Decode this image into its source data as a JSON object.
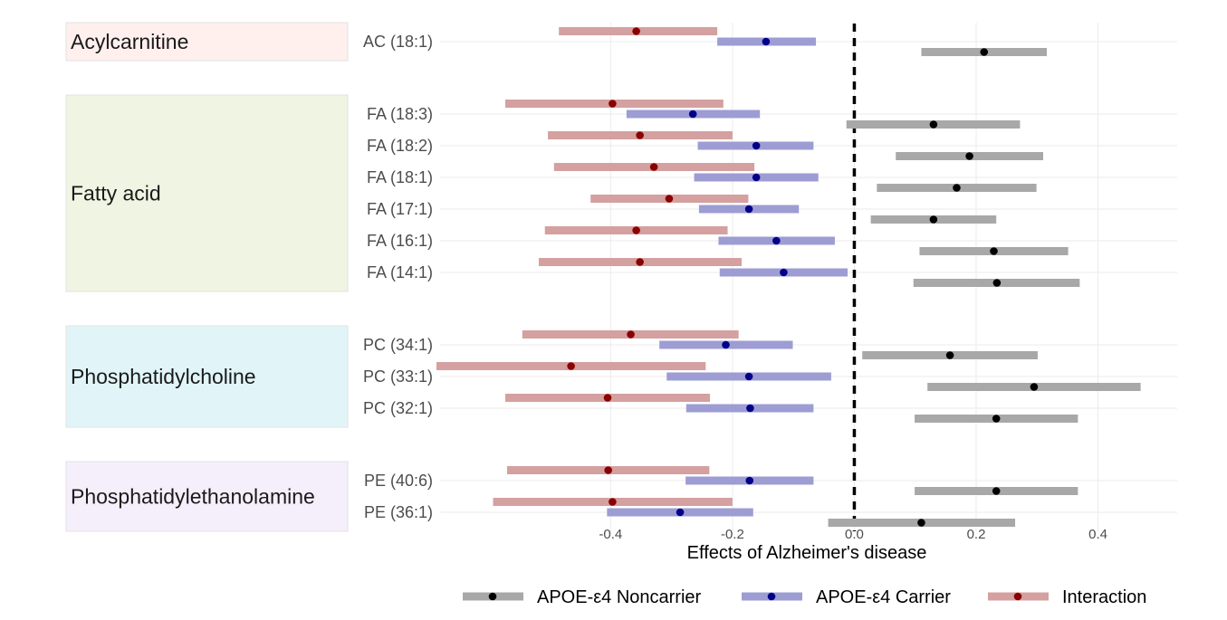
{
  "chart_data": {
    "type": "forest",
    "xlabel": "Effects of Alzheimer's disease",
    "xlim": [
      -0.68,
      0.53
    ],
    "xticks": [
      -0.4,
      -0.2,
      0.0,
      0.2,
      0.4
    ],
    "xtick_labels": [
      "-0.4",
      "-0.2",
      "0.0",
      "0.2",
      "0.4"
    ],
    "reference_line": 0.0,
    "series": [
      {
        "key": "noncarrier",
        "name": "APOE-ε4 Noncarrier",
        "color": "#000000",
        "bar_color": "#a8a8a8"
      },
      {
        "key": "carrier",
        "name": "APOE-ε4 Carrier",
        "color": "#00008b",
        "bar_color": "#9d9dd4"
      },
      {
        "key": "interaction",
        "name": "Interaction",
        "color": "#8b0000",
        "bar_color": "#d4a0a0"
      }
    ],
    "groups": [
      {
        "name": "Acylcarnitine",
        "color": "#fff0ee",
        "rows": [
          {
            "label": "AC (18:1)",
            "interaction": {
              "est": -0.358,
              "lo": -0.485,
              "hi": -0.225
            },
            "carrier": {
              "est": -0.145,
              "lo": -0.225,
              "hi": -0.063
            },
            "noncarrier": {
              "est": 0.213,
              "lo": 0.11,
              "hi": 0.316
            }
          }
        ]
      },
      {
        "name": "Fatty acid",
        "color": "#f0f5e3",
        "rows": [
          {
            "label": "FA (18:3)",
            "interaction": {
              "est": -0.397,
              "lo": -0.573,
              "hi": -0.215
            },
            "carrier": {
              "est": -0.265,
              "lo": -0.374,
              "hi": -0.155
            },
            "noncarrier": {
              "est": 0.13,
              "lo": -0.013,
              "hi": 0.272
            }
          },
          {
            "label": "FA (18:2)",
            "interaction": {
              "est": -0.352,
              "lo": -0.503,
              "hi": -0.2
            },
            "carrier": {
              "est": -0.161,
              "lo": -0.257,
              "hi": -0.067
            },
            "noncarrier": {
              "est": 0.189,
              "lo": 0.068,
              "hi": 0.31
            }
          },
          {
            "label": "FA (18:1)",
            "interaction": {
              "est": -0.329,
              "lo": -0.493,
              "hi": -0.164
            },
            "carrier": {
              "est": -0.161,
              "lo": -0.263,
              "hi": -0.059
            },
            "noncarrier": {
              "est": 0.168,
              "lo": 0.037,
              "hi": 0.299
            }
          },
          {
            "label": "FA (17:1)",
            "interaction": {
              "est": -0.304,
              "lo": -0.433,
              "hi": -0.174
            },
            "carrier": {
              "est": -0.173,
              "lo": -0.255,
              "hi": -0.091
            },
            "noncarrier": {
              "est": 0.13,
              "lo": 0.027,
              "hi": 0.233
            }
          },
          {
            "label": "FA (16:1)",
            "interaction": {
              "est": -0.358,
              "lo": -0.508,
              "hi": -0.208
            },
            "carrier": {
              "est": -0.128,
              "lo": -0.223,
              "hi": -0.032
            },
            "noncarrier": {
              "est": 0.229,
              "lo": 0.107,
              "hi": 0.351
            }
          },
          {
            "label": "FA (14:1)",
            "interaction": {
              "est": -0.352,
              "lo": -0.518,
              "hi": -0.185
            },
            "carrier": {
              "est": -0.116,
              "lo": -0.221,
              "hi": -0.011
            },
            "noncarrier": {
              "est": 0.234,
              "lo": 0.097,
              "hi": 0.37
            }
          }
        ]
      },
      {
        "name": "Phosphatidylcholine",
        "color": "#e1f5f8",
        "rows": [
          {
            "label": "PC (34:1)",
            "interaction": {
              "est": -0.367,
              "lo": -0.545,
              "hi": -0.19
            },
            "carrier": {
              "est": -0.211,
              "lo": -0.32,
              "hi": -0.101
            },
            "noncarrier": {
              "est": 0.157,
              "lo": 0.013,
              "hi": 0.301
            }
          },
          {
            "label": "PC (33:1)",
            "interaction": {
              "est": -0.465,
              "lo": -0.686,
              "hi": -0.244
            },
            "carrier": {
              "est": -0.173,
              "lo": -0.308,
              "hi": -0.038
            },
            "noncarrier": {
              "est": 0.295,
              "lo": 0.12,
              "hi": 0.47
            }
          },
          {
            "label": "PC (32:1)",
            "interaction": {
              "est": -0.405,
              "lo": -0.573,
              "hi": -0.237
            },
            "carrier": {
              "est": -0.171,
              "lo": -0.276,
              "hi": -0.067
            },
            "noncarrier": {
              "est": 0.233,
              "lo": 0.099,
              "hi": 0.367
            }
          }
        ]
      },
      {
        "name": "Phosphatidylethanolamine",
        "color": "#f5effc",
        "rows": [
          {
            "label": "PE (40:6)",
            "interaction": {
              "est": -0.404,
              "lo": -0.57,
              "hi": -0.238
            },
            "carrier": {
              "est": -0.172,
              "lo": -0.277,
              "hi": -0.067
            },
            "noncarrier": {
              "est": 0.233,
              "lo": 0.099,
              "hi": 0.367
            }
          },
          {
            "label": "PE (36:1)",
            "interaction": {
              "est": -0.397,
              "lo": -0.593,
              "hi": -0.2
            },
            "carrier": {
              "est": -0.286,
              "lo": -0.406,
              "hi": -0.166
            },
            "noncarrier": {
              "est": 0.11,
              "lo": -0.043,
              "hi": 0.264
            }
          }
        ]
      }
    ],
    "legend_position": "bottom"
  }
}
